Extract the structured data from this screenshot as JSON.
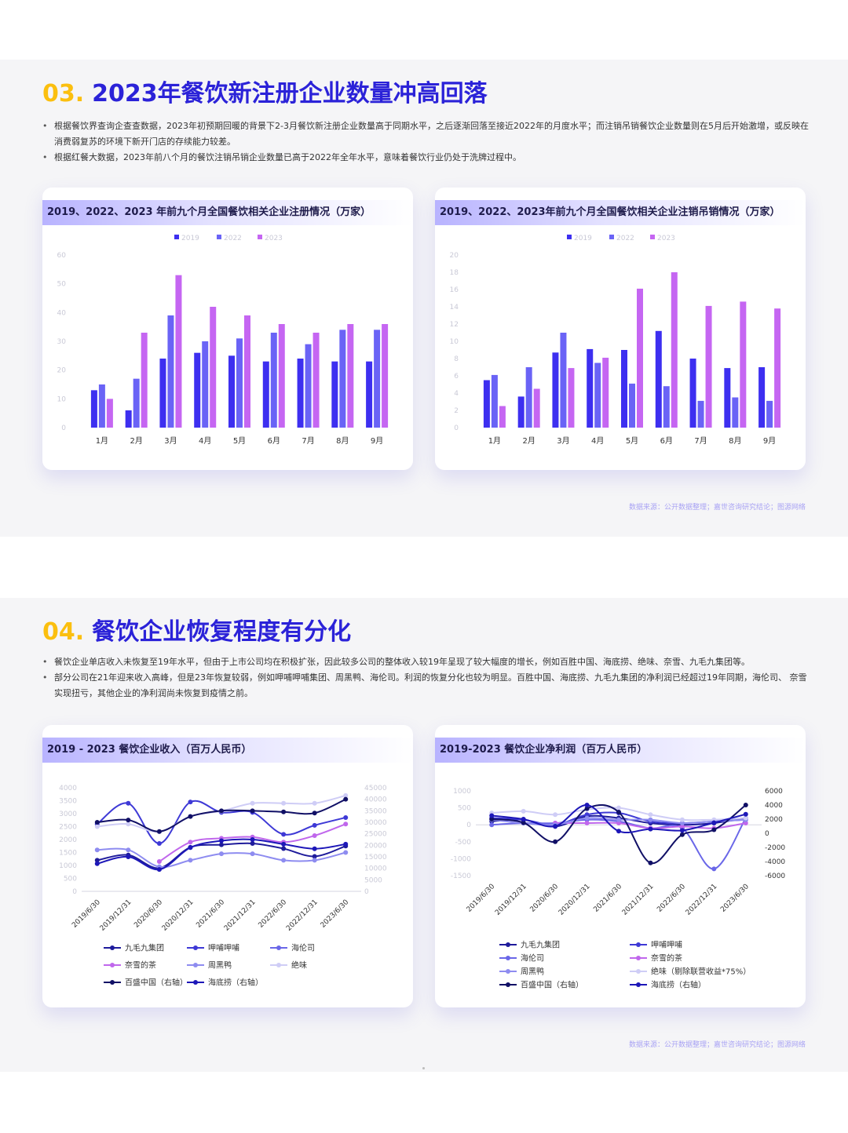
{
  "section1": {
    "num": "03.",
    "title": "2023年餐饮新注册企业数量冲高回落",
    "bullets": [
      "根据餐饮界查询企查查数据，2023年初预期回暖的背景下2-3月餐饮新注册企业数量高于同期水平，之后逐渐回落至接近2022年的月度水平；而注销吊销餐饮企业数量则在5月后开始激增，或反映在消费弱复苏的环境下新开门店的存续能力较差。",
      "根据红餐大数据，2023年前八个月的餐饮注销吊销企业数量已高于2022年全年水平，意味着餐饮行业仍处于洗牌过程中。"
    ],
    "source": "数据来源：公开数据整理；嘉世咨询研究结论；图源网络"
  },
  "section2": {
    "num": "04.",
    "title": "餐饮企业恢复程度有分化",
    "bullets": [
      "餐饮企业单店收入未恢复至19年水平，但由于上市公司均在积极扩张，因此较多公司的整体收入较19年呈现了较大幅度的增长，例如百胜中国、海底捞、绝味、奈雪、九毛九集团等。",
      "部分公司在21年迎来收入高峰，但是23年恢复较弱，例如呷哺呷哺集团、周黑鸭、海伦司。利润的恢复分化也较为明显。百胜中国、海底捞、九毛九集团的净利润已经超过19年同期，海伦司、 奈雪实现扭亏，其他企业的净利润尚未恢复到疫情之前。"
    ],
    "source": "数据来源：公开数据整理；嘉世咨询研究结论；图源网络"
  },
  "chart_data": [
    {
      "type": "bar",
      "title": "2019、2022、2023 年前九个月全国餐饮相关企业注册情况（万家）",
      "categories": [
        "1月",
        "2月",
        "3月",
        "4月",
        "5月",
        "6月",
        "7月",
        "8月",
        "9月"
      ],
      "ylim": [
        0,
        60
      ],
      "yticks": [
        "0",
        "10",
        "20",
        "30",
        "40",
        "50",
        "60"
      ],
      "series": [
        {
          "name": "2019",
          "color": "#3d2ff0",
          "values": [
            13,
            6,
            24,
            26,
            25,
            23,
            24,
            23,
            23
          ]
        },
        {
          "name": "2022",
          "color": "#6a63f6",
          "values": [
            15,
            17,
            39,
            30,
            31,
            33,
            29,
            34,
            34
          ]
        },
        {
          "name": "2023",
          "color": "#c566f2",
          "values": [
            10,
            33,
            53,
            42,
            39,
            36,
            33,
            36,
            36
          ]
        }
      ]
    },
    {
      "type": "bar",
      "title": "2019、2022、2023年前九个月全国餐饮相关企业注销吊销情况（万家）",
      "categories": [
        "1月",
        "2月",
        "3月",
        "4月",
        "5月",
        "6月",
        "7月",
        "8月",
        "9月"
      ],
      "ylim": [
        0,
        20
      ],
      "yticks": [
        "0",
        "2",
        "4",
        "6",
        "8",
        "10",
        "12",
        "14",
        "16",
        "18",
        "20"
      ],
      "series": [
        {
          "name": "2019",
          "color": "#3d2ff0",
          "values": [
            5.5,
            3.6,
            8.7,
            9.1,
            9.0,
            11.2,
            8.0,
            6.9,
            7.0
          ]
        },
        {
          "name": "2022",
          "color": "#6a63f6",
          "values": [
            6.1,
            7.0,
            11.0,
            7.5,
            5.1,
            4.8,
            3.1,
            3.5,
            3.1
          ]
        },
        {
          "name": "2023",
          "color": "#c566f2",
          "values": [
            2.5,
            4.5,
            6.9,
            8.1,
            16.1,
            18.0,
            14.1,
            14.6,
            13.8
          ]
        }
      ]
    },
    {
      "type": "line",
      "title": "2019 - 2023 餐饮企业收入（百万人民币）",
      "categories": [
        "2019/6/30",
        "2019/12/31",
        "2020/6/30",
        "2020/12/31",
        "2021/6/30",
        "2021/12/31",
        "2022/6/30",
        "2022/12/31",
        "2023/6/30"
      ],
      "ylim": [
        0,
        4000
      ],
      "y2lim": [
        0,
        45000
      ],
      "yticks": [
        "0",
        "500",
        "1000",
        "1500",
        "2000",
        "2500",
        "3000",
        "3500",
        "4000"
      ],
      "y2ticks": [
        "0",
        "5000",
        "10000",
        "15000",
        "20000",
        "25000",
        "30000",
        "35000",
        "40000",
        "45000"
      ],
      "series": [
        {
          "name": "九毛九集团",
          "color": "#1e1b9b",
          "axis": "left",
          "values": [
            1200,
            1400,
            900,
            1700,
            1800,
            1850,
            1650,
            1350,
            1750
          ]
        },
        {
          "name": "呷哺呷哺",
          "color": "#3e39d6",
          "axis": "left",
          "values": [
            2600,
            3400,
            1850,
            3450,
            3050,
            3050,
            2200,
            2550,
            2850
          ]
        },
        {
          "name": "海伦司",
          "color": "#6a67e8",
          "axis": "left",
          "values": [
            null,
            null,
            null,
            null,
            null,
            null,
            null,
            null,
            null
          ]
        },
        {
          "name": "奈雪的茶",
          "color": "#c067ec",
          "axis": "left",
          "values": [
            null,
            null,
            1150,
            1900,
            2050,
            2100,
            1900,
            2150,
            2600
          ]
        },
        {
          "name": "周黑鸭",
          "color": "#8e8cf0",
          "axis": "left",
          "values": [
            1600,
            1600,
            950,
            1200,
            1450,
            1450,
            1200,
            1200,
            1500
          ]
        },
        {
          "name": "绝味",
          "color": "#cfcdf6",
          "axis": "left",
          "values": [
            2500,
            2600,
            2300,
            2900,
            3100,
            3400,
            3400,
            3400,
            3700
          ]
        },
        {
          "name": "百盛中国（右轴）",
          "color": "#111066",
          "axis": "right",
          "values": [
            30000,
            31000,
            26000,
            32500,
            35000,
            35000,
            34500,
            34000,
            40000
          ]
        },
        {
          "name": "海底捞（右轴）",
          "color": "#1d17b8",
          "axis": "right",
          "values": [
            12000,
            15000,
            9500,
            19000,
            22000,
            22500,
            20500,
            18500,
            20500
          ]
        }
      ]
    },
    {
      "type": "line",
      "title": "2019-2023 餐饮企业净利润（百万人民币）",
      "categories": [
        "2019/6/30",
        "2019/12/31",
        "2020/6/30",
        "2020/12/31",
        "2021/6/30",
        "2021/12/31",
        "2022/6/30",
        "2022/12/31",
        "2023/6/30"
      ],
      "ylim": [
        -1500,
        1000
      ],
      "y2lim": [
        -6000,
        6000
      ],
      "yticks": [
        "-1500",
        "-1000",
        "-500",
        "0",
        "500",
        "1000"
      ],
      "y2ticks": [
        "-6000",
        "-4000",
        "-2000",
        "0",
        "2000",
        "4000",
        "6000"
      ],
      "series": [
        {
          "name": "九毛九集团",
          "color": "#1e1b9b",
          "axis": "left",
          "values": [
            100,
            150,
            -50,
            250,
            200,
            50,
            0,
            50,
            200
          ]
        },
        {
          "name": "呷哺呷哺",
          "color": "#3e39d6",
          "axis": "left",
          "values": [
            200,
            150,
            0,
            300,
            350,
            100,
            50,
            100,
            150
          ]
        },
        {
          "name": "海伦司",
          "color": "#6a67e8",
          "axis": "left",
          "values": [
            0,
            50,
            50,
            150,
            100,
            -100,
            -100,
            -1300,
            200
          ]
        },
        {
          "name": "奈雪的茶",
          "color": "#c067ec",
          "axis": "left",
          "values": [
            null,
            null,
            50,
            50,
            50,
            -100,
            -50,
            -100,
            50
          ]
        },
        {
          "name": "周黑鸭",
          "color": "#8e8cf0",
          "axis": "left",
          "values": [
            150,
            50,
            0,
            200,
            150,
            150,
            50,
            100,
            150
          ]
        },
        {
          "name": "绝味（剔除联营收益*75%）",
          "color": "#cfcdf6",
          "axis": "left",
          "values": [
            350,
            400,
            300,
            450,
            500,
            300,
            150,
            150,
            200
          ]
        },
        {
          "name": "百盛中国（右轴）",
          "color": "#111066",
          "axis": "right",
          "values": [
            2000,
            1500,
            -1200,
            3500,
            3000,
            -4200,
            -200,
            500,
            4000
          ]
        },
        {
          "name": "海底捞（右轴）",
          "color": "#1d17b8",
          "axis": "right",
          "values": [
            2500,
            2000,
            1000,
            4000,
            300,
            600,
            400,
            1500,
            2700
          ]
        }
      ]
    }
  ]
}
